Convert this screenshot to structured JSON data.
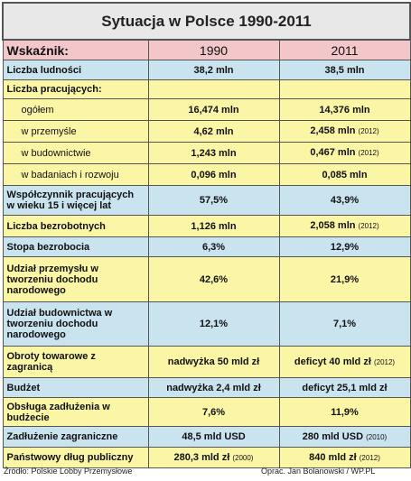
{
  "title": "Sytuacja w Polsce 1990-2011",
  "header": {
    "label": "Wskaźnik:",
    "y1": "1990",
    "y2": "2011"
  },
  "rows": {
    "ludnosc": {
      "label": "Liczba ludności",
      "v1": "38,2 mln",
      "v2": "38,5 mln"
    },
    "pracujacy": {
      "label": "Liczba pracujących:",
      "ogolem": {
        "label": "ogółem",
        "v1": "16,474 mln",
        "v2": "14,376 mln"
      },
      "przemysl": {
        "label": "w przemyśle",
        "v1": "4,62 mln",
        "v2": "2,458 mln",
        "v2_note": "(2012)"
      },
      "budownictwo": {
        "label": "w budownictwie",
        "v1": "1,243 mln",
        "v2": "0,467 mln",
        "v2_note": "(2012)"
      },
      "badania": {
        "label": "w badaniach i rozwoju",
        "v1": "0,096 mln",
        "v2": "0,085 mln"
      }
    },
    "wspolczynnik": {
      "label": "Współczynnik pracujących w wieku 15 i więcej lat",
      "v1": "57,5%",
      "v2": "43,9%"
    },
    "bezrobotni": {
      "label": "Liczba bezrobotnych",
      "v1": "1,126 mln",
      "v2": "2,058 mln",
      "v2_note": "(2012)"
    },
    "stopa": {
      "label": "Stopa bezrobocia",
      "v1": "6,3%",
      "v2": "12,9%"
    },
    "przemysl_dochod": {
      "label": "Udział przemysłu w tworzeniu dochodu narodowego",
      "v1": "42,6%",
      "v2": "21,9%"
    },
    "budownictwo_dochod": {
      "label": "Udział budownictwa w tworzeniu dochodu narodowego",
      "v1": "12,1%",
      "v2": "7,1%"
    },
    "obroty": {
      "label": "Obroty towarowe z zagranicą",
      "v1": "nadwyżka 50 mld zł",
      "v2": "deficyt 40 mld zł",
      "v2_note": "(2012)"
    },
    "budzet": {
      "label": "Budżet",
      "v1": "nadwyżka 2,4 mld zł",
      "v2": "deficyt 25,1 mld zł"
    },
    "obsluga": {
      "label": "Obsługa zadłużenia w budżecie",
      "v1": "7,6%",
      "v2": "11,9%"
    },
    "zadluzenie": {
      "label": "Zadłużenie zagraniczne",
      "v1": "48,5 mld USD",
      "v2": "280 mld USD",
      "v2_note": "(2010)"
    },
    "dlug": {
      "label": "Państwowy dług publiczny",
      "v1": "280,3 mld zł",
      "v1_note": "(2000)",
      "v2": "840 mld zł",
      "v2_note": "(2012)"
    }
  },
  "footer": {
    "source": "Źródło: Polskie Lobby Przemysłowe",
    "author": "Oprac. Jan Bolanowski / WP.PL"
  }
}
